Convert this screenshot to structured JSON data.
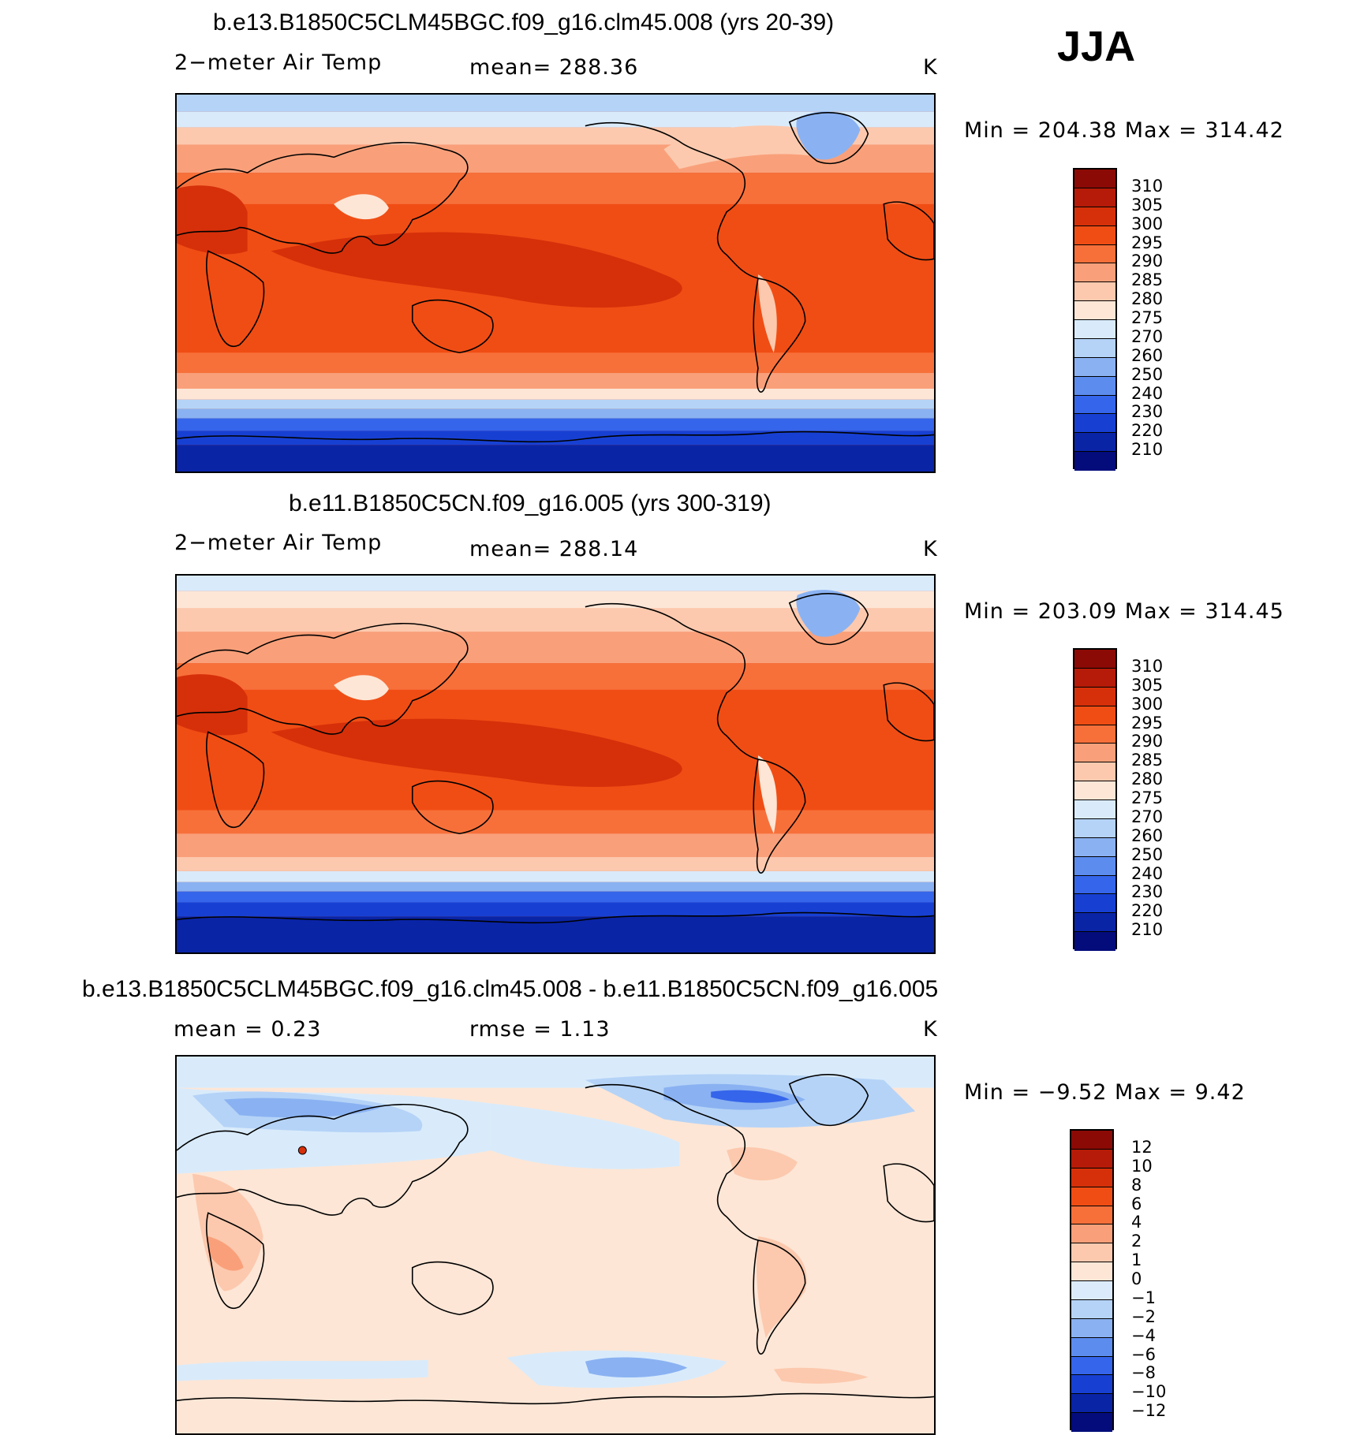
{
  "season": "JJA",
  "panels": [
    {
      "title": "b.e13.B1850C5CLM45BGC.f09_g16.clm45.008 (yrs 20-39)",
      "left_label": "2−meter Air Temp",
      "mid_label": "mean=  288.36",
      "units": "K",
      "minmax": "Min  =  204.38  Max  =  314.42"
    },
    {
      "title": "b.e11.B1850C5CN.f09_g16.005 (yrs 300-319)",
      "left_label": "2−meter Air Temp",
      "mid_label": "mean=  288.14",
      "units": "K",
      "minmax": "Min  =  203.09  Max  =  314.45"
    },
    {
      "title": "b.e13.B1850C5CLM45BGC.f09_g16.clm45.008 - b.e11.B1850C5CN.f09_g16.005",
      "left_label": "mean  =     0.23",
      "mid_label": "rmse  =     1.13",
      "units": "K",
      "minmax": "Min  =    −9.52  Max  =     9.42"
    }
  ],
  "colorbar_temp": {
    "labels": [
      "310",
      "305",
      "300",
      "295",
      "290",
      "285",
      "280",
      "275",
      "270",
      "260",
      "250",
      "240",
      "230",
      "220",
      "210"
    ],
    "colors": [
      "#8b0a05",
      "#b51b08",
      "#d6300a",
      "#f04d14",
      "#f7703a",
      "#f9a07a",
      "#fcc9ae",
      "#fde6d6",
      "#d9ebfb",
      "#b5d3f7",
      "#8ab2f2",
      "#5c8cee",
      "#3565ea",
      "#1740d3",
      "#0a24a6",
      "#030c7a"
    ]
  },
  "colorbar_diff": {
    "labels": [
      "12",
      "10",
      "8",
      "6",
      "4",
      "2",
      "1",
      "0",
      "−1",
      "−2",
      "−4",
      "−6",
      "−8",
      "−10",
      "−12"
    ],
    "colors": [
      "#8b0a05",
      "#b51b08",
      "#d6300a",
      "#f04d14",
      "#f7703a",
      "#f9a07a",
      "#fcc9ae",
      "#fde6d6",
      "#dcebfb",
      "#b5d3f7",
      "#8ab2f2",
      "#5c8cee",
      "#3565ea",
      "#1740d3",
      "#0a24a6",
      "#030c7a"
    ]
  }
}
